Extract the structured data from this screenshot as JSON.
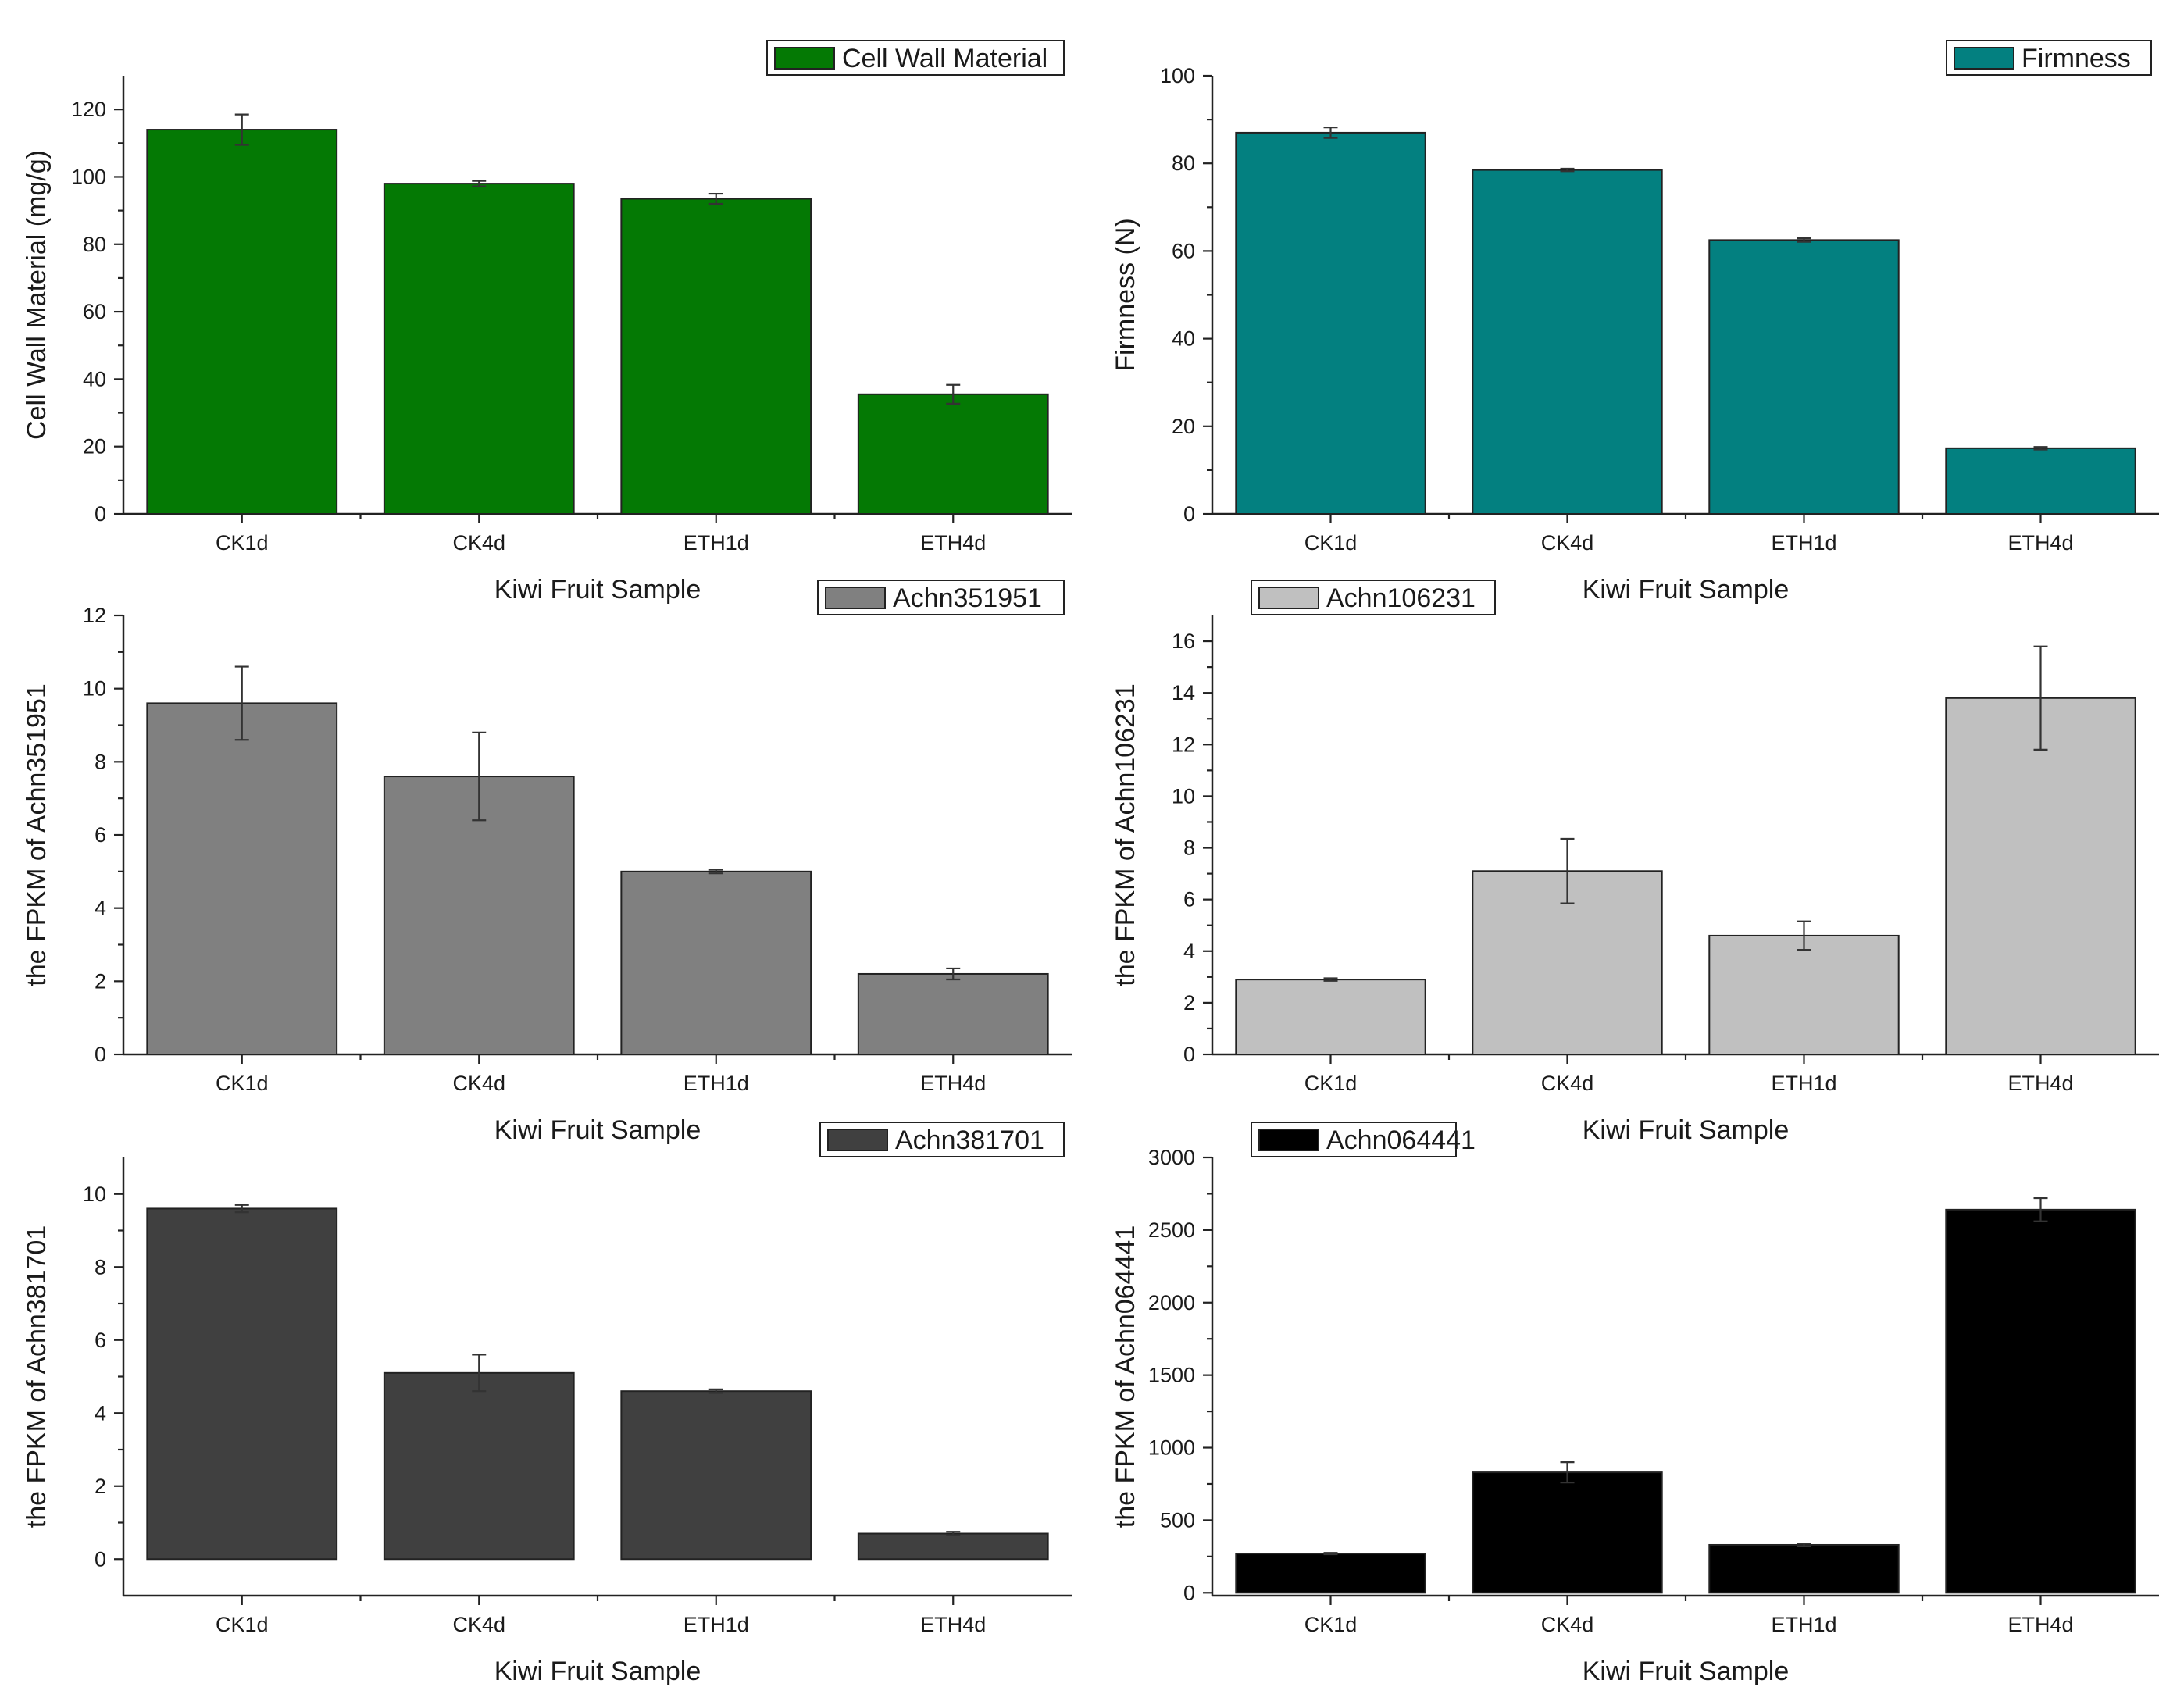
{
  "chart_data": [
    {
      "type": "bar",
      "title": "",
      "categories": [
        "CK1d",
        "CK4d",
        "ETH1d",
        "ETH4d"
      ],
      "series": [
        {
          "name": "Cell Wall Material",
          "values": [
            114,
            98,
            93.5,
            35.5
          ],
          "errors": [
            4.5,
            0.8,
            1.5,
            2.8
          ]
        }
      ],
      "xlabel": "Kiwi Fruit Sample",
      "ylabel": "Cell Wall Material (mg/g)",
      "ylim": [
        0,
        130
      ],
      "yticks": [
        0,
        20,
        40,
        60,
        80,
        100,
        120
      ],
      "color": "#047904",
      "legend": "top-right"
    },
    {
      "type": "bar",
      "title": "",
      "categories": [
        "CK1d",
        "CK4d",
        "ETH1d",
        "ETH4d"
      ],
      "series": [
        {
          "name": "Firmness",
          "values": [
            87,
            78.5,
            62.5,
            15
          ],
          "errors": [
            1.2,
            0.3,
            0.4,
            0.3
          ]
        }
      ],
      "xlabel": "Kiwi Fruit Sample",
      "ylabel": "Firmness (N)",
      "ylim": [
        0,
        100
      ],
      "yticks": [
        0,
        20,
        40,
        60,
        80,
        100
      ],
      "color": "#038080",
      "legend": "top-right"
    },
    {
      "type": "bar",
      "title": "",
      "categories": [
        "CK1d",
        "CK4d",
        "ETH1d",
        "ETH4d"
      ],
      "series": [
        {
          "name": "Achn351951",
          "values": [
            9.6,
            7.6,
            5.0,
            2.2
          ],
          "errors": [
            1.0,
            1.2,
            0.05,
            0.15
          ]
        }
      ],
      "xlabel": "Kiwi Fruit Sample",
      "ylabel": "the FPKM of Achn351951",
      "ylim": [
        0,
        12
      ],
      "yticks": [
        0,
        2,
        4,
        6,
        8,
        10,
        12
      ],
      "color": "#808080",
      "legend": "top-right"
    },
    {
      "type": "bar",
      "title": "",
      "categories": [
        "CK1d",
        "CK4d",
        "ETH1d",
        "ETH4d"
      ],
      "series": [
        {
          "name": "Achn106231",
          "values": [
            2.9,
            7.1,
            4.6,
            13.8
          ],
          "errors": [
            0.05,
            1.25,
            0.55,
            2.0
          ]
        }
      ],
      "xlabel": "Kiwi Fruit Sample",
      "ylabel": "the FPKM of Achn106231",
      "ylim": [
        0,
        17
      ],
      "yticks": [
        0,
        2,
        4,
        6,
        8,
        10,
        12,
        14,
        16
      ],
      "color": "#c0c0c0",
      "legend": "top-left"
    },
    {
      "type": "bar",
      "title": "",
      "categories": [
        "CK1d",
        "CK4d",
        "ETH1d",
        "ETH4d"
      ],
      "series": [
        {
          "name": "Achn381701",
          "values": [
            9.6,
            5.1,
            4.6,
            0.7
          ],
          "errors": [
            0.1,
            0.5,
            0.05,
            0.05
          ]
        }
      ],
      "xlabel": "Kiwi Fruit Sample",
      "ylabel": "the FPKM of Achn381701",
      "ylim": [
        -1,
        11
      ],
      "yticks": [
        0,
        2,
        4,
        6,
        8,
        10
      ],
      "color": "#404040",
      "legend": "top-right"
    },
    {
      "type": "bar",
      "title": "",
      "categories": [
        "CK1d",
        "CK4d",
        "ETH1d",
        "ETH4d"
      ],
      "series": [
        {
          "name": "Achn064441",
          "values": [
            270,
            830,
            330,
            2640
          ],
          "errors": [
            5,
            70,
            10,
            80
          ]
        }
      ],
      "xlabel": "Kiwi Fruit Sample",
      "ylabel": "the FPKM of Achn064441",
      "ylim": [
        -20,
        3000
      ],
      "yticks": [
        0,
        500,
        1000,
        1500,
        2000,
        2500,
        3000
      ],
      "color": "#000000",
      "legend": "top-left"
    }
  ]
}
